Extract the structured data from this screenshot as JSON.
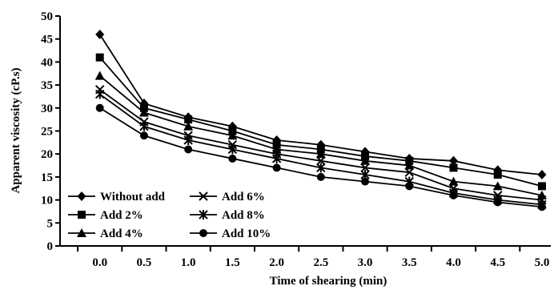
{
  "chart_data": {
    "type": "line",
    "title": "",
    "xlabel": "Time of shearing (min)",
    "ylabel": "Apparent viscosity (cP.s)",
    "x": [
      0.0,
      0.5,
      1.0,
      1.5,
      2.0,
      2.5,
      3.0,
      3.5,
      4.0,
      4.5,
      5.0
    ],
    "x_tick_labels": [
      "0.0",
      "0.5",
      "1.0",
      "1.5",
      "2.0",
      "2.5",
      "3.0",
      "3.5",
      "4.0",
      "4.5",
      "5.0"
    ],
    "xlim": [
      -0.45,
      5.1
    ],
    "ylim": [
      0,
      50
    ],
    "y_ticks": [
      0,
      5,
      10,
      15,
      20,
      25,
      30,
      35,
      40,
      45,
      50
    ],
    "y_tick_labels": [
      "0",
      "5",
      "10",
      "15",
      "20",
      "25",
      "30",
      "35",
      "40",
      "45",
      "50"
    ],
    "grid": false,
    "legend_position": "bottom-left",
    "series": [
      {
        "name": "Without add",
        "marker": "diamond",
        "values": [
          46,
          31,
          28,
          26,
          23,
          22,
          20.5,
          19,
          18.5,
          16.5,
          15.5
        ]
      },
      {
        "name": "Add 2%",
        "marker": "square",
        "values": [
          41,
          30,
          27.5,
          25,
          22,
          21,
          19.5,
          18.5,
          17,
          15.5,
          13
        ]
      },
      {
        "name": "Add 4%",
        "marker": "triangle",
        "values": [
          37,
          29,
          26,
          24,
          21,
          20,
          18.5,
          17.5,
          14,
          13,
          11
        ]
      },
      {
        "name": "Add 6%",
        "marker": "x",
        "values": [
          34,
          27,
          24,
          22,
          20,
          18.5,
          17,
          16,
          12.5,
          11,
          10
        ]
      },
      {
        "name": "Add 8%",
        "marker": "star",
        "values": [
          33,
          26,
          23,
          21,
          19,
          17,
          15.5,
          14,
          11.5,
          10,
          9
        ]
      },
      {
        "name": "Add 10%",
        "marker": "circle",
        "values": [
          30,
          24,
          21,
          19,
          17,
          15,
          14,
          13,
          11,
          9.5,
          8.5
        ]
      }
    ]
  }
}
